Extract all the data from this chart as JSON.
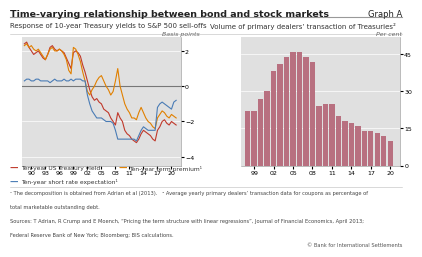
{
  "title": "Time-varying relationship between bond and stock markets",
  "graph_label": "Graph A",
  "left_panel_title": "Response of 10-year Treasury yields to S&P 500 sell-offs",
  "right_panel_title": "Volume of primary dealers’ transaction of Treasuries²",
  "left_ylabel": "Basis points",
  "right_ylabel": "Per cent",
  "left_ylim": [
    -4.5,
    2.8
  ],
  "left_yticks": [
    -4,
    -2,
    0,
    2
  ],
  "right_ylim": [
    0,
    52
  ],
  "right_yticks": [
    0,
    15,
    30,
    45
  ],
  "left_xticks": [
    1990,
    1993,
    1996,
    1999,
    2002,
    2005,
    2008,
    2011,
    2014,
    2017,
    2020
  ],
  "left_xticklabels": [
    "90",
    "93",
    "96",
    "99",
    "02",
    "05",
    "08",
    "11",
    "14",
    "17",
    "20"
  ],
  "right_xticks": [
    1999,
    2002,
    2005,
    2008,
    2011,
    2014,
    2017,
    2020
  ],
  "right_xticklabels": [
    "99",
    "02",
    "05",
    "08",
    "11",
    "14",
    "17",
    "20"
  ],
  "treasury_yield_color": "#c0392b",
  "term_premium_color": "#e08000",
  "short_rate_color": "#4a7cb5",
  "bar_color": "#b87080",
  "background_color": "#e0e0e0",
  "footnote1": "¹ The decomposition is obtained from Adrian et al (2013).   ² Average yearly primary dealers’ transaction data for coupons as percentage of",
  "footnote2": "total marketable outstanding debt.",
  "footnote3": "Sources: T Adrian, R Crump and E Moench, “Pricing the term structure with linear regressions”, Journal of Financial Economics, April 2013;",
  "footnote4": "Federal Reserve Bank of New York; Bloomberg; BIS calculations.",
  "copyright": "© Bank for International Settlements",
  "legend1": "Ten-year US Treasury yield",
  "legend2": "Ten-year term premium¹",
  "legend3": "Ten-year short rate expectation¹",
  "treasury_x": [
    1988.5,
    1989,
    1989.5,
    1990,
    1990.5,
    1991,
    1991.5,
    1992,
    1992.5,
    1993,
    1993.5,
    1994,
    1994.5,
    1995,
    1995.5,
    1996,
    1996.5,
    1997,
    1997.5,
    1998,
    1998.5,
    1999,
    1999.5,
    2000,
    2000.5,
    2001,
    2001.5,
    2002,
    2002.5,
    2003,
    2003.5,
    2004,
    2004.5,
    2005,
    2005.5,
    2006,
    2006.5,
    2007,
    2007.5,
    2008,
    2008.5,
    2009,
    2009.5,
    2010,
    2010.5,
    2011,
    2011.5,
    2012,
    2012.5,
    2013,
    2013.5,
    2014,
    2014.5,
    2015,
    2015.5,
    2016,
    2016.5,
    2017,
    2017.5,
    2018,
    2018.5,
    2019,
    2019.5,
    2020,
    2020.5,
    2021
  ],
  "treasury_y": [
    2.4,
    2.5,
    2.2,
    2.0,
    1.8,
    1.9,
    2.0,
    1.8,
    1.6,
    1.5,
    1.8,
    2.2,
    2.3,
    2.1,
    2.0,
    2.1,
    2.0,
    1.9,
    1.6,
    1.3,
    1.0,
    1.9,
    2.0,
    1.9,
    1.7,
    1.2,
    0.8,
    0.3,
    -0.2,
    -0.6,
    -0.8,
    -0.7,
    -0.9,
    -1.0,
    -1.3,
    -1.4,
    -1.5,
    -1.8,
    -2.0,
    -2.2,
    -1.5,
    -1.8,
    -2.0,
    -2.5,
    -2.7,
    -2.8,
    -3.0,
    -3.1,
    -3.2,
    -3.0,
    -2.7,
    -2.5,
    -2.6,
    -2.7,
    -2.8,
    -3.0,
    -3.1,
    -2.5,
    -2.3,
    -2.0,
    -1.9,
    -2.1,
    -2.2,
    -2.0,
    -2.1,
    -2.2
  ],
  "term_premium_x": [
    1988.5,
    1989,
    1989.5,
    1990,
    1990.5,
    1991,
    1991.5,
    1992,
    1992.5,
    1993,
    1993.5,
    1994,
    1994.5,
    1995,
    1995.5,
    1996,
    1996.5,
    1997,
    1997.5,
    1998,
    1998.5,
    1999,
    1999.5,
    2000,
    2000.5,
    2001,
    2001.5,
    2002,
    2002.5,
    2003,
    2003.5,
    2004,
    2004.5,
    2005,
    2005.5,
    2006,
    2006.5,
    2007,
    2007.5,
    2008,
    2008.5,
    2009,
    2009.5,
    2010,
    2010.5,
    2011,
    2011.5,
    2012,
    2012.5,
    2013,
    2013.5,
    2014,
    2014.5,
    2015,
    2015.5,
    2016,
    2016.5,
    2017,
    2017.5,
    2018,
    2018.5,
    2019,
    2019.5,
    2020,
    2020.5,
    2021
  ],
  "term_premium_y": [
    2.3,
    2.4,
    2.2,
    2.3,
    2.1,
    2.0,
    2.1,
    1.9,
    1.7,
    1.5,
    1.8,
    2.1,
    2.2,
    2.0,
    2.0,
    2.1,
    2.0,
    1.8,
    1.5,
    0.9,
    0.7,
    2.2,
    2.1,
    1.8,
    1.4,
    0.8,
    0.3,
    -0.3,
    -0.5,
    -0.2,
    0.0,
    0.3,
    0.5,
    0.6,
    0.3,
    0.0,
    -0.2,
    -0.5,
    -0.3,
    0.3,
    1.0,
    0.0,
    -0.5,
    -1.0,
    -1.3,
    -1.5,
    -1.8,
    -1.8,
    -1.9,
    -1.5,
    -1.2,
    -1.5,
    -1.8,
    -2.0,
    -2.1,
    -2.3,
    -2.4,
    -1.8,
    -1.6,
    -1.4,
    -1.5,
    -1.7,
    -1.8,
    -1.6,
    -1.7,
    -1.8
  ],
  "short_rate_x": [
    1988.5,
    1989,
    1989.5,
    1990,
    1990.5,
    1991,
    1991.5,
    1992,
    1992.5,
    1993,
    1993.5,
    1994,
    1994.5,
    1995,
    1995.5,
    1996,
    1996.5,
    1997,
    1997.5,
    1998,
    1998.5,
    1999,
    1999.5,
    2000,
    2000.5,
    2001,
    2001.5,
    2002,
    2002.5,
    2003,
    2003.5,
    2004,
    2004.5,
    2005,
    2005.5,
    2006,
    2006.5,
    2007,
    2007.5,
    2008,
    2008.5,
    2009,
    2009.5,
    2010,
    2010.5,
    2011,
    2011.5,
    2012,
    2012.5,
    2013,
    2013.5,
    2014,
    2014.5,
    2015,
    2015.5,
    2016,
    2016.5,
    2017,
    2017.5,
    2018,
    2018.5,
    2019,
    2019.5,
    2020,
    2020.5,
    2021
  ],
  "short_rate_y": [
    0.3,
    0.4,
    0.4,
    0.3,
    0.3,
    0.4,
    0.4,
    0.3,
    0.3,
    0.3,
    0.3,
    0.2,
    0.3,
    0.4,
    0.3,
    0.3,
    0.3,
    0.4,
    0.3,
    0.3,
    0.4,
    0.3,
    0.4,
    0.4,
    0.4,
    0.3,
    0.3,
    -0.5,
    -1.0,
    -1.4,
    -1.6,
    -1.8,
    -1.8,
    -1.8,
    -1.9,
    -2.0,
    -2.0,
    -2.0,
    -2.1,
    -2.5,
    -3.0,
    -3.0,
    -3.0,
    -3.0,
    -3.0,
    -3.0,
    -3.0,
    -3.0,
    -3.1,
    -2.8,
    -2.5,
    -2.3,
    -2.4,
    -2.5,
    -2.5,
    -2.5,
    -2.5,
    -1.2,
    -1.0,
    -0.9,
    -1.0,
    -1.1,
    -1.2,
    -1.3,
    -0.9,
    -0.8
  ],
  "bar_years": [
    1998,
    1999,
    2000,
    2001,
    2002,
    2003,
    2004,
    2005,
    2006,
    2007,
    2008,
    2009,
    2010,
    2011,
    2012,
    2013,
    2014,
    2015,
    2016,
    2017,
    2018,
    2019,
    2020
  ],
  "bar_values": [
    22,
    22,
    27,
    30,
    38,
    41,
    44,
    46,
    46,
    44,
    42,
    24,
    25,
    25,
    20,
    18,
    17,
    16,
    14,
    14,
    13,
    12,
    10
  ]
}
